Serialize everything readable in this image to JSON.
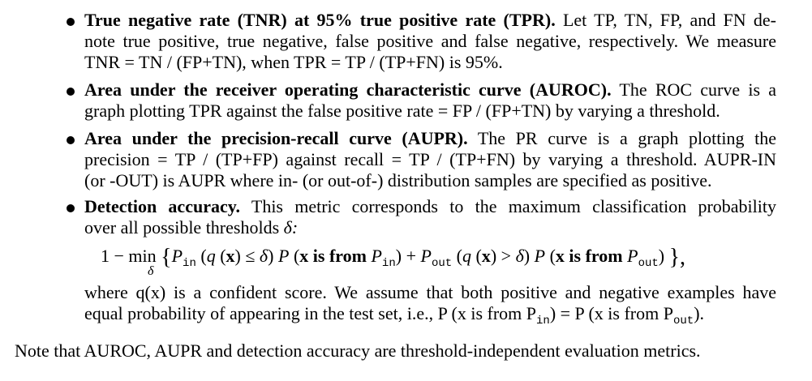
{
  "items": [
    {
      "title": "True negative rate (TNR) at 95% true positive rate (TPR).",
      "lines": [
        "Let TP, TN, FP, and FN de-",
        "note true positive, true negative, false positive and false negative, respectively. We measure",
        "TNR = TN / (FP+TN), when TPR = TP / (TP+FN) is 95%."
      ]
    },
    {
      "title": "Area under the receiver operating characteristic curve (AUROC).",
      "lines": [
        "The ROC curve is a",
        "graph plotting TPR against the false positive rate = FP / (FP+TN) by varying a threshold."
      ]
    },
    {
      "title": "Area under the precision-recall curve (AUPR).",
      "lines": [
        "The PR curve is a graph plotting the",
        "precision = TP / (TP+FP) against recall = TP / (TP+FN) by varying a threshold. AUPR-IN",
        "(or -OUT) is AUPR where in- (or out-of-) distribution samples are specified as positive."
      ]
    },
    {
      "title": "Detection accuracy.",
      "lines": [
        "This metric corresponds to the maximum classification probability",
        "over all possible thresholds",
        "δ:"
      ],
      "formula": {
        "lead": "1 − min",
        "min_sub": "δ",
        "open": "{",
        "P": "P",
        "in": "in",
        "out": "out",
        "q": "q",
        "x": "x",
        "le": "≤",
        "gt": ">",
        "delta": "δ",
        "from": "is from",
        "plus": "+",
        "close": "},"
      },
      "after_lines": [
        "where q(x) is a confident score. We assume that both positive and negative examples have",
        "equal probability of appearing in the test set, i.e., P (x is from P",
        "in",
        ") = P (x is from P",
        "out",
        ")."
      ]
    }
  ],
  "note": "Note that AUROC, AUPR and detection accuracy are threshold-independent evaluation metrics."
}
